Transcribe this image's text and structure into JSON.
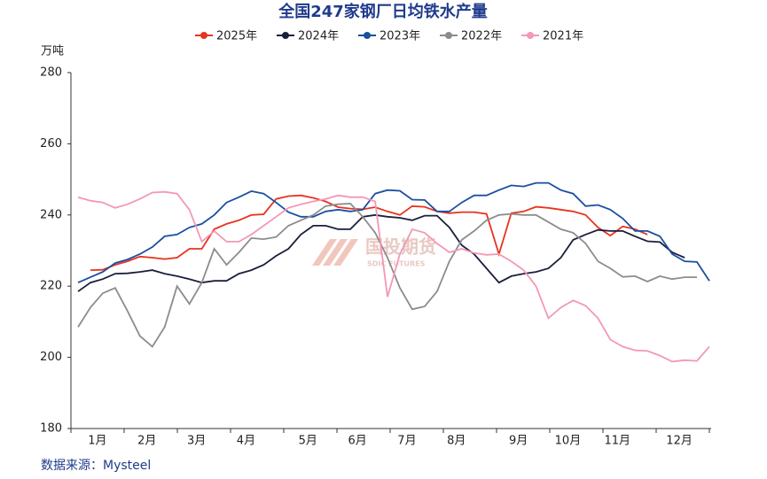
{
  "chart_data": {
    "type": "line",
    "title": "全国247家钢厂日均铁水产量",
    "y_label": "万吨",
    "source": "数据来源：Mysteel",
    "watermark": "国投期货",
    "watermark_sub": "SDIC FUTURES",
    "categories": [
      null,
      null,
      "1月",
      null,
      null,
      null,
      "2月",
      null,
      null,
      null,
      "3月",
      null,
      null,
      null,
      "4月",
      null,
      null,
      null,
      null,
      "5月",
      null,
      null,
      null,
      "6月",
      null,
      null,
      null,
      "7月",
      null,
      null,
      null,
      "8月",
      null,
      null,
      null,
      null,
      "9月",
      null,
      null,
      null,
      "10月",
      null,
      null,
      null,
      "11月",
      null,
      null,
      null,
      null,
      "12月",
      null,
      null
    ],
    "ylim": [
      180,
      280
    ],
    "yticks": [
      180,
      200,
      220,
      240,
      260,
      280
    ],
    "grid": false,
    "legend": "top",
    "series": [
      {
        "name": "2025年",
        "color": "#e8331f",
        "values": [
          null,
          224.5,
          224.6,
          226,
          227,
          228.3,
          228,
          227.6,
          228,
          230.5,
          230.5,
          236,
          237.5,
          238.5,
          240,
          240.2,
          244.5,
          245.3,
          245.5,
          244.8,
          243.8,
          242.2,
          241.8,
          241.6,
          242.2,
          241,
          240,
          242.5,
          242.3,
          241,
          240.5,
          240.8,
          240.8,
          240.3,
          229,
          240.5,
          241,
          242.3,
          242,
          241.5,
          241,
          240,
          236.5,
          234.2,
          236.8,
          236,
          234.5,
          null,
          null,
          null,
          null,
          null
        ]
      },
      {
        "name": "2024年",
        "color": "#1a1f3c",
        "values": [
          218.5,
          221,
          222,
          223.5,
          223.6,
          224,
          224.5,
          223.5,
          222.8,
          222,
          221,
          221.5,
          221.5,
          223.5,
          224.5,
          226,
          228.5,
          230.5,
          234.5,
          237,
          237,
          236,
          236,
          239.5,
          240,
          239.5,
          239.2,
          238.5,
          239.8,
          239.8,
          236.5,
          231.5,
          229,
          225,
          221,
          222.8,
          223.5,
          224,
          225,
          228,
          233,
          234.5,
          235.8,
          235.5,
          235.5,
          234,
          232.6,
          232.4,
          229.5,
          228,
          null,
          null
        ]
      },
      {
        "name": "2023年",
        "color": "#1a4fa0",
        "values": [
          221,
          222.5,
          224,
          226.5,
          227.5,
          229,
          231,
          234,
          234.5,
          236.5,
          237.5,
          240,
          243.5,
          245,
          246.7,
          246,
          243.5,
          240.8,
          239.5,
          239.5,
          241,
          241.5,
          241,
          241.5,
          246,
          247,
          246.8,
          244.3,
          244.2,
          241,
          241,
          243.5,
          245.5,
          245.5,
          247,
          248.3,
          248,
          249,
          249,
          247,
          246,
          242.5,
          242.8,
          241.5,
          239,
          235.5,
          235.5,
          234,
          229,
          227,
          226.8,
          221.5
        ]
      },
      {
        "name": "2022年",
        "color": "#8c8c8c",
        "values": [
          208.5,
          214,
          218,
          219.5,
          213,
          206,
          203,
          208.5,
          220,
          215,
          221,
          230.5,
          226,
          229.5,
          233.5,
          233.2,
          233.8,
          237,
          238.5,
          240,
          242.5,
          243,
          243.2,
          239.5,
          235,
          228,
          219.5,
          213.5,
          214.3,
          218.5,
          227,
          233,
          235.5,
          238.5,
          240,
          240.3,
          240,
          240,
          238,
          236,
          235,
          232,
          227,
          225,
          222.6,
          222.8,
          221.3,
          222.8,
          222,
          222.5,
          222.5,
          null
        ]
      },
      {
        "name": "2021年",
        "color": "#f398b5",
        "values": [
          245,
          244,
          243.5,
          242,
          243,
          244.5,
          246.3,
          246.5,
          246,
          241.5,
          232.5,
          235.5,
          232.5,
          232.5,
          234.5,
          237,
          239.5,
          242,
          243,
          243.8,
          244.5,
          245.5,
          245,
          245,
          243.8,
          217,
          229,
          236,
          235,
          232,
          229.5,
          230.5,
          229.3,
          228.8,
          229,
          227,
          224.5,
          220,
          211,
          214,
          216,
          214.5,
          211,
          205,
          203,
          202,
          201.8,
          200.5,
          198.8,
          199.2,
          199,
          203
        ]
      }
    ]
  }
}
